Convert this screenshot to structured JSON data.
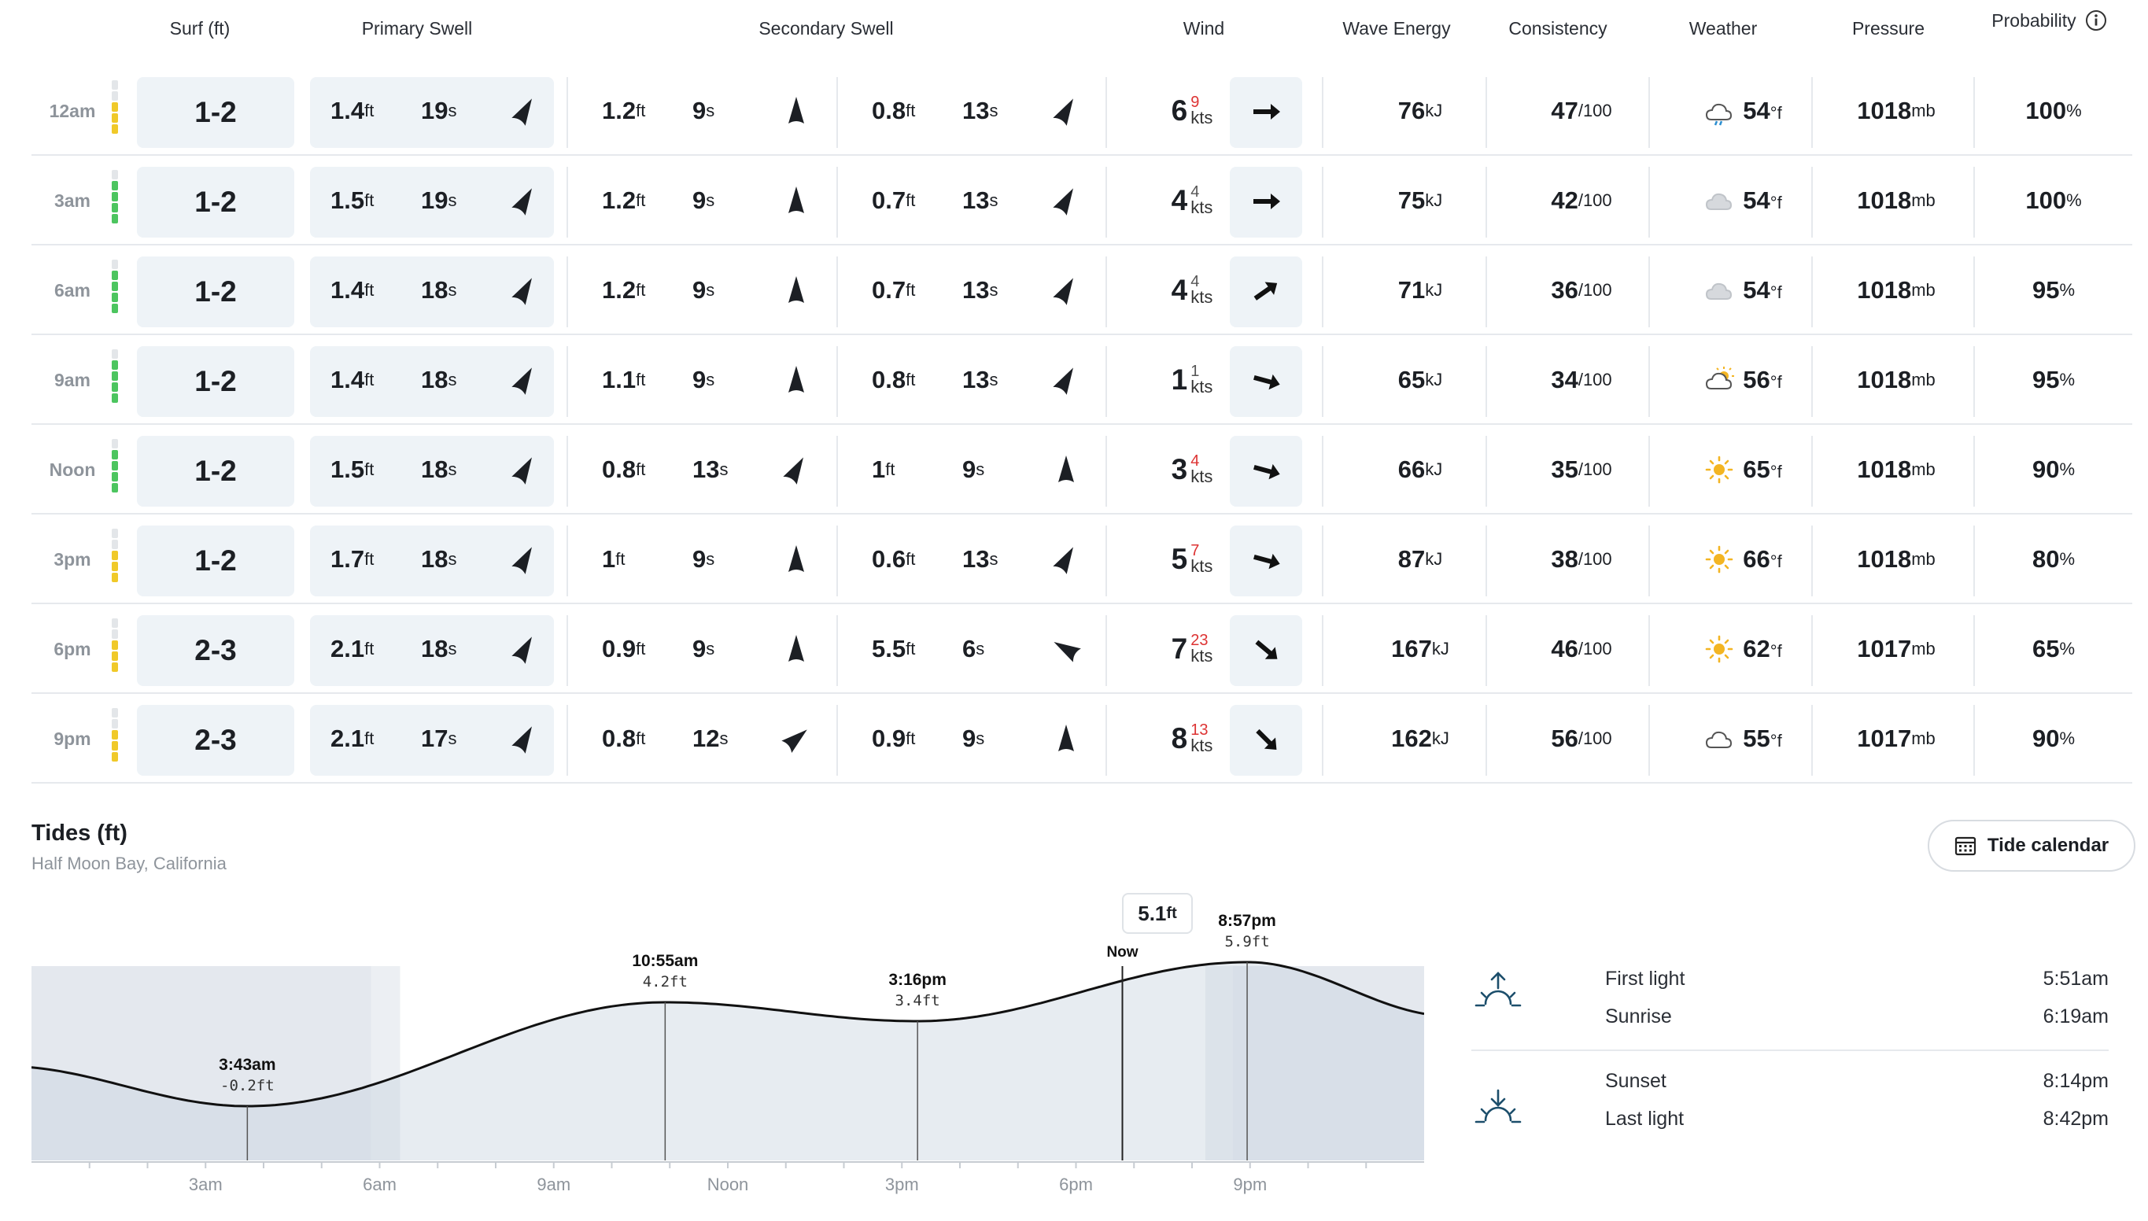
{
  "headers": {
    "surf": "Surf (ft)",
    "primary": "Primary Swell",
    "secondary": "Secondary Swell",
    "wind": "Wind",
    "energy": "Wave Energy",
    "consistency": "Consistency",
    "weather": "Weather",
    "pressure": "Pressure",
    "probability": "Probability"
  },
  "units": {
    "ft": "ft",
    "s": "s",
    "kts": "kts",
    "kj": "kJ",
    "c100": "/100",
    "degf": "°f",
    "mb": "mb",
    "pct": "%"
  },
  "rows": [
    {
      "time": "12am",
      "surf": "1-2",
      "p_h": "1.4",
      "p_s": "19",
      "s1_h": "1.2",
      "s1_s": "9",
      "s2_h": "0.8",
      "s2_s": "13",
      "wind": "6",
      "gust": "9",
      "energy": "76",
      "cons": "47",
      "temp": "54",
      "weather": "rain",
      "pressure": "1018",
      "prob": "100"
    },
    {
      "time": "3am",
      "surf": "1-2",
      "p_h": "1.5",
      "p_s": "19",
      "s1_h": "1.2",
      "s1_s": "9",
      "s2_h": "0.7",
      "s2_s": "13",
      "wind": "4",
      "gust": "4",
      "energy": "75",
      "cons": "42",
      "temp": "54",
      "weather": "cloudy",
      "pressure": "1018",
      "prob": "100"
    },
    {
      "time": "6am",
      "surf": "1-2",
      "p_h": "1.4",
      "p_s": "18",
      "s1_h": "1.2",
      "s1_s": "9",
      "s2_h": "0.7",
      "s2_s": "13",
      "wind": "4",
      "gust": "4",
      "energy": "71",
      "cons": "36",
      "temp": "54",
      "weather": "cloudy",
      "pressure": "1018",
      "prob": "95"
    },
    {
      "time": "9am",
      "surf": "1-2",
      "p_h": "1.4",
      "p_s": "18",
      "s1_h": "1.1",
      "s1_s": "9",
      "s2_h": "0.8",
      "s2_s": "13",
      "wind": "1",
      "gust": "1",
      "energy": "65",
      "cons": "34",
      "temp": "56",
      "weather": "partly-cloudy",
      "pressure": "1018",
      "prob": "95"
    },
    {
      "time": "Noon",
      "surf": "1-2",
      "p_h": "1.5",
      "p_s": "18",
      "s1_h": "0.8",
      "s1_s": "13",
      "s2_h": "1",
      "s2_s": "9",
      "wind": "3",
      "gust": "4",
      "energy": "66",
      "cons": "35",
      "temp": "65",
      "weather": "sunny",
      "pressure": "1018",
      "prob": "90"
    },
    {
      "time": "3pm",
      "surf": "1-2",
      "p_h": "1.7",
      "p_s": "18",
      "s1_h": "1",
      "s1_s": "9",
      "s2_h": "0.6",
      "s2_s": "13",
      "wind": "5",
      "gust": "7",
      "energy": "87",
      "cons": "38",
      "temp": "66",
      "weather": "sunny",
      "pressure": "1018",
      "prob": "80"
    },
    {
      "time": "6pm",
      "surf": "2-3",
      "p_h": "2.1",
      "p_s": "18",
      "s1_h": "0.9",
      "s1_s": "9",
      "s2_h": "5.5",
      "s2_s": "6",
      "wind": "7",
      "gust": "23",
      "energy": "167",
      "cons": "46",
      "temp": "62",
      "weather": "sunny",
      "pressure": "1017",
      "prob": "65"
    },
    {
      "time": "9pm",
      "surf": "2-3",
      "p_h": "2.1",
      "p_s": "17",
      "s1_h": "0.8",
      "s1_s": "12",
      "s2_h": "0.9",
      "s2_s": "9",
      "wind": "8",
      "gust": "13",
      "energy": "162",
      "cons": "56",
      "temp": "55",
      "weather": "cloud-outline",
      "pressure": "1017",
      "prob": "90"
    }
  ],
  "colors": {
    "green": "#4cc55f",
    "yellow": "#f0c929",
    "gust_red": "#d33333",
    "box_bg": "#eef3f7"
  },
  "tides": {
    "title": "Tides (ft)",
    "location": "Half Moon Bay, California",
    "calendar_button": "Tide calendar",
    "now_label": "Now",
    "now_value": "5.1",
    "now_unit": "ft",
    "events": [
      {
        "time": "3:43am",
        "height": "-0.2ft"
      },
      {
        "time": "10:55am",
        "height": "4.2ft"
      },
      {
        "time": "3:16pm",
        "height": "3.4ft"
      },
      {
        "time": "8:57pm",
        "height": "5.9ft"
      }
    ],
    "axis_labels": [
      "3am",
      "6am",
      "9am",
      "Noon",
      "3pm",
      "6pm",
      "9pm"
    ]
  },
  "sun": {
    "first_light_label": "First light",
    "first_light": "5:51am",
    "sunrise_label": "Sunrise",
    "sunrise": "6:19am",
    "sunset_label": "Sunset",
    "sunset": "8:14pm",
    "last_light_label": "Last light",
    "last_light": "8:42pm"
  }
}
